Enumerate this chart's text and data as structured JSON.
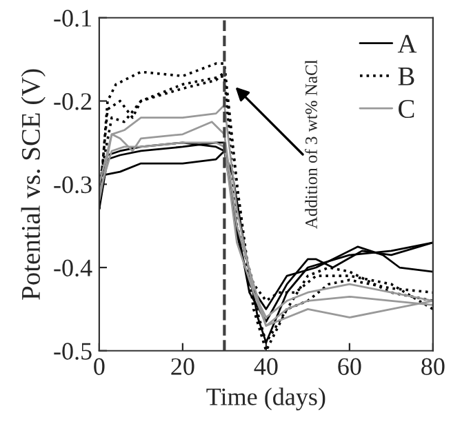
{
  "chart_data": {
    "type": "line",
    "xlabel": "Time (days)",
    "ylabel": "Potential vs. SCE (V)",
    "xlim": [
      0,
      80
    ],
    "ylim": [
      -0.5,
      -0.1
    ],
    "xticks": [
      0,
      20,
      40,
      60,
      80
    ],
    "yticks": [
      {
        "value": -0.5,
        "label": "-0.5"
      },
      {
        "value": -0.4,
        "label": "-0.4"
      },
      {
        "value": -0.3,
        "label": "-0.3"
      },
      {
        "value": -0.2,
        "label": "-0.2"
      },
      {
        "value": -0.1,
        "label": "-0.1"
      }
    ],
    "grid": false,
    "legend": "top right",
    "marker": "none",
    "ref_lines": [
      {
        "axis": "x",
        "value": 30,
        "color": "#404040",
        "line_style": "dashed"
      }
    ],
    "annotations": [
      {
        "text": "Addition of 3 wt% NaCl",
        "x": 32,
        "y": -0.18
      }
    ],
    "series": [
      {
        "name": "A",
        "color": "#000000",
        "line_style": "solid",
        "x": [
          0,
          2,
          5,
          10,
          20,
          28,
          30,
          31,
          33,
          36,
          40,
          45,
          50,
          52,
          56,
          63,
          70,
          80
        ],
        "values": [
          -0.33,
          -0.27,
          -0.265,
          -0.26,
          -0.255,
          -0.25,
          -0.25,
          -0.28,
          -0.35,
          -0.43,
          -0.465,
          -0.42,
          -0.39,
          -0.39,
          -0.4,
          -0.38,
          -0.385,
          -0.37
        ]
      },
      {
        "color": "#000000",
        "line_style": "solid",
        "x": [
          0,
          2,
          5,
          10,
          20,
          28,
          30,
          31,
          33,
          36,
          40,
          45,
          52,
          62,
          68,
          72,
          80
        ],
        "values": [
          -0.3,
          -0.265,
          -0.26,
          -0.255,
          -0.25,
          -0.255,
          -0.26,
          -0.29,
          -0.36,
          -0.42,
          -0.45,
          -0.41,
          -0.4,
          -0.375,
          -0.385,
          -0.4,
          -0.405
        ]
      },
      {
        "color": "#000000",
        "line_style": "solid",
        "x": [
          0,
          5,
          10,
          20,
          28,
          30,
          32,
          35,
          38,
          40,
          45,
          50,
          60,
          70,
          80
        ],
        "values": [
          -0.29,
          -0.285,
          -0.275,
          -0.275,
          -0.27,
          -0.26,
          -0.29,
          -0.38,
          -0.46,
          -0.49,
          -0.43,
          -0.4,
          -0.385,
          -0.38,
          -0.37
        ]
      },
      {
        "name": "B",
        "color": "#000000",
        "line_style": "dotted",
        "x": [
          0,
          2,
          4,
          10,
          20,
          28,
          30,
          33,
          36,
          40,
          45,
          50,
          55,
          60,
          70,
          80
        ],
        "values": [
          -0.33,
          -0.2,
          -0.18,
          -0.165,
          -0.17,
          -0.155,
          -0.155,
          -0.3,
          -0.42,
          -0.49,
          -0.45,
          -0.41,
          -0.4,
          -0.405,
          -0.43,
          -0.44
        ]
      },
      {
        "color": "#000000",
        "line_style": "dotted",
        "x": [
          0,
          2,
          5,
          8,
          10,
          20,
          28,
          30,
          33,
          37,
          40,
          45,
          50,
          55,
          60,
          70,
          80
        ],
        "values": [
          -0.32,
          -0.21,
          -0.2,
          -0.22,
          -0.2,
          -0.185,
          -0.175,
          -0.165,
          -0.3,
          -0.45,
          -0.5,
          -0.45,
          -0.44,
          -0.42,
          -0.415,
          -0.425,
          -0.43
        ]
      },
      {
        "color": "#000000",
        "line_style": "dotted",
        "x": [
          0,
          3,
          6,
          10,
          20,
          30,
          33,
          37,
          40,
          43,
          47,
          52,
          60,
          70,
          80
        ],
        "values": [
          -0.3,
          -0.22,
          -0.225,
          -0.2,
          -0.18,
          -0.17,
          -0.35,
          -0.42,
          -0.44,
          -0.43,
          -0.43,
          -0.41,
          -0.41,
          -0.42,
          -0.45
        ]
      },
      {
        "name": "C",
        "color": "#999999",
        "line_style": "solid",
        "x": [
          0,
          3,
          6,
          10,
          20,
          28,
          30,
          33,
          37,
          40,
          45,
          50,
          60,
          70,
          80
        ],
        "values": [
          -0.32,
          -0.24,
          -0.235,
          -0.22,
          -0.22,
          -0.215,
          -0.205,
          -0.33,
          -0.43,
          -0.46,
          -0.44,
          -0.43,
          -0.42,
          -0.43,
          -0.44
        ]
      },
      {
        "color": "#999999",
        "line_style": "solid",
        "x": [
          0,
          3,
          5,
          8,
          10,
          20,
          27,
          30,
          33,
          37,
          40,
          45,
          50,
          60,
          70,
          80
        ],
        "values": [
          -0.3,
          -0.24,
          -0.245,
          -0.26,
          -0.245,
          -0.24,
          -0.225,
          -0.24,
          -0.35,
          -0.42,
          -0.47,
          -0.45,
          -0.44,
          -0.435,
          -0.44,
          -0.445
        ]
      },
      {
        "color": "#999999",
        "line_style": "solid",
        "x": [
          0,
          3,
          6,
          10,
          20,
          28,
          30,
          33,
          37,
          40,
          45,
          50,
          60,
          70,
          80
        ],
        "values": [
          -0.31,
          -0.26,
          -0.255,
          -0.255,
          -0.25,
          -0.25,
          -0.255,
          -0.37,
          -0.43,
          -0.47,
          -0.46,
          -0.45,
          -0.46,
          -0.45,
          -0.44
        ]
      }
    ]
  }
}
